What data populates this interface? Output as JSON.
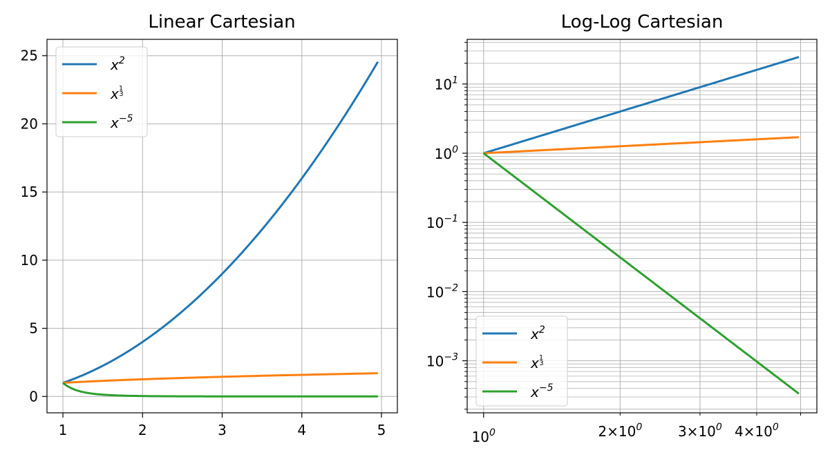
{
  "chart_data": [
    {
      "type": "line",
      "title": "Linear Cartesian",
      "xscale": "linear",
      "yscale": "linear",
      "xlim": [
        0.8,
        5.2
      ],
      "ylim": [
        -1.2,
        26.2
      ],
      "xticks": [
        1,
        2,
        3,
        4,
        5
      ],
      "xtick_labels": [
        "1",
        "2",
        "3",
        "4",
        "5"
      ],
      "yticks": [
        0,
        5,
        10,
        15,
        20,
        25
      ],
      "ytick_labels": [
        "0",
        "5",
        "10",
        "15",
        "20",
        "25"
      ],
      "grid": true,
      "legend_position": "upper-left",
      "x": [
        1,
        1.5,
        2,
        2.5,
        3,
        3.5,
        4,
        4.5,
        5
      ],
      "series": [
        {
          "name": "x^2",
          "color": "#1f77b4",
          "values": [
            1,
            2.25,
            4,
            6.25,
            9,
            12.25,
            16,
            20.25,
            25
          ]
        },
        {
          "name": "x^(1/3)",
          "color": "#ff7f0e",
          "values": [
            1,
            1.145,
            1.26,
            1.357,
            1.442,
            1.518,
            1.587,
            1.651,
            1.71
          ]
        },
        {
          "name": "x^-5",
          "color": "#2ca02c",
          "values": [
            1,
            0.132,
            0.031,
            0.0102,
            0.0041,
            0.0019,
            0.001,
            0.0005,
            0.0003
          ]
        }
      ]
    },
    {
      "type": "line",
      "title": "Log-Log Cartesian",
      "xscale": "log",
      "yscale": "log",
      "xticks": [
        1,
        2,
        3,
        4
      ],
      "xtick_labels": [
        "10^0",
        "2×10^0",
        "3×10^0",
        "4×10^0"
      ],
      "yticks": [
        0.001,
        0.01,
        0.1,
        1,
        10
      ],
      "ytick_labels": [
        "10^-3",
        "10^-2",
        "10^-1",
        "10^0",
        "10^1"
      ],
      "grid": true,
      "legend_position": "lower-left",
      "x": [
        1,
        1.5,
        2,
        2.5,
        3,
        3.5,
        4,
        4.5,
        5
      ],
      "series": [
        {
          "name": "x^2",
          "color": "#1f77b4",
          "values": [
            1,
            2.25,
            4,
            6.25,
            9,
            12.25,
            16,
            20.25,
            25
          ]
        },
        {
          "name": "x^(1/3)",
          "color": "#ff7f0e",
          "values": [
            1,
            1.145,
            1.26,
            1.357,
            1.442,
            1.518,
            1.587,
            1.651,
            1.71
          ]
        },
        {
          "name": "x^-5",
          "color": "#2ca02c",
          "values": [
            1,
            0.132,
            0.031,
            0.0102,
            0.0041,
            0.0019,
            0.001,
            0.0005,
            0.0003
          ]
        }
      ]
    }
  ]
}
